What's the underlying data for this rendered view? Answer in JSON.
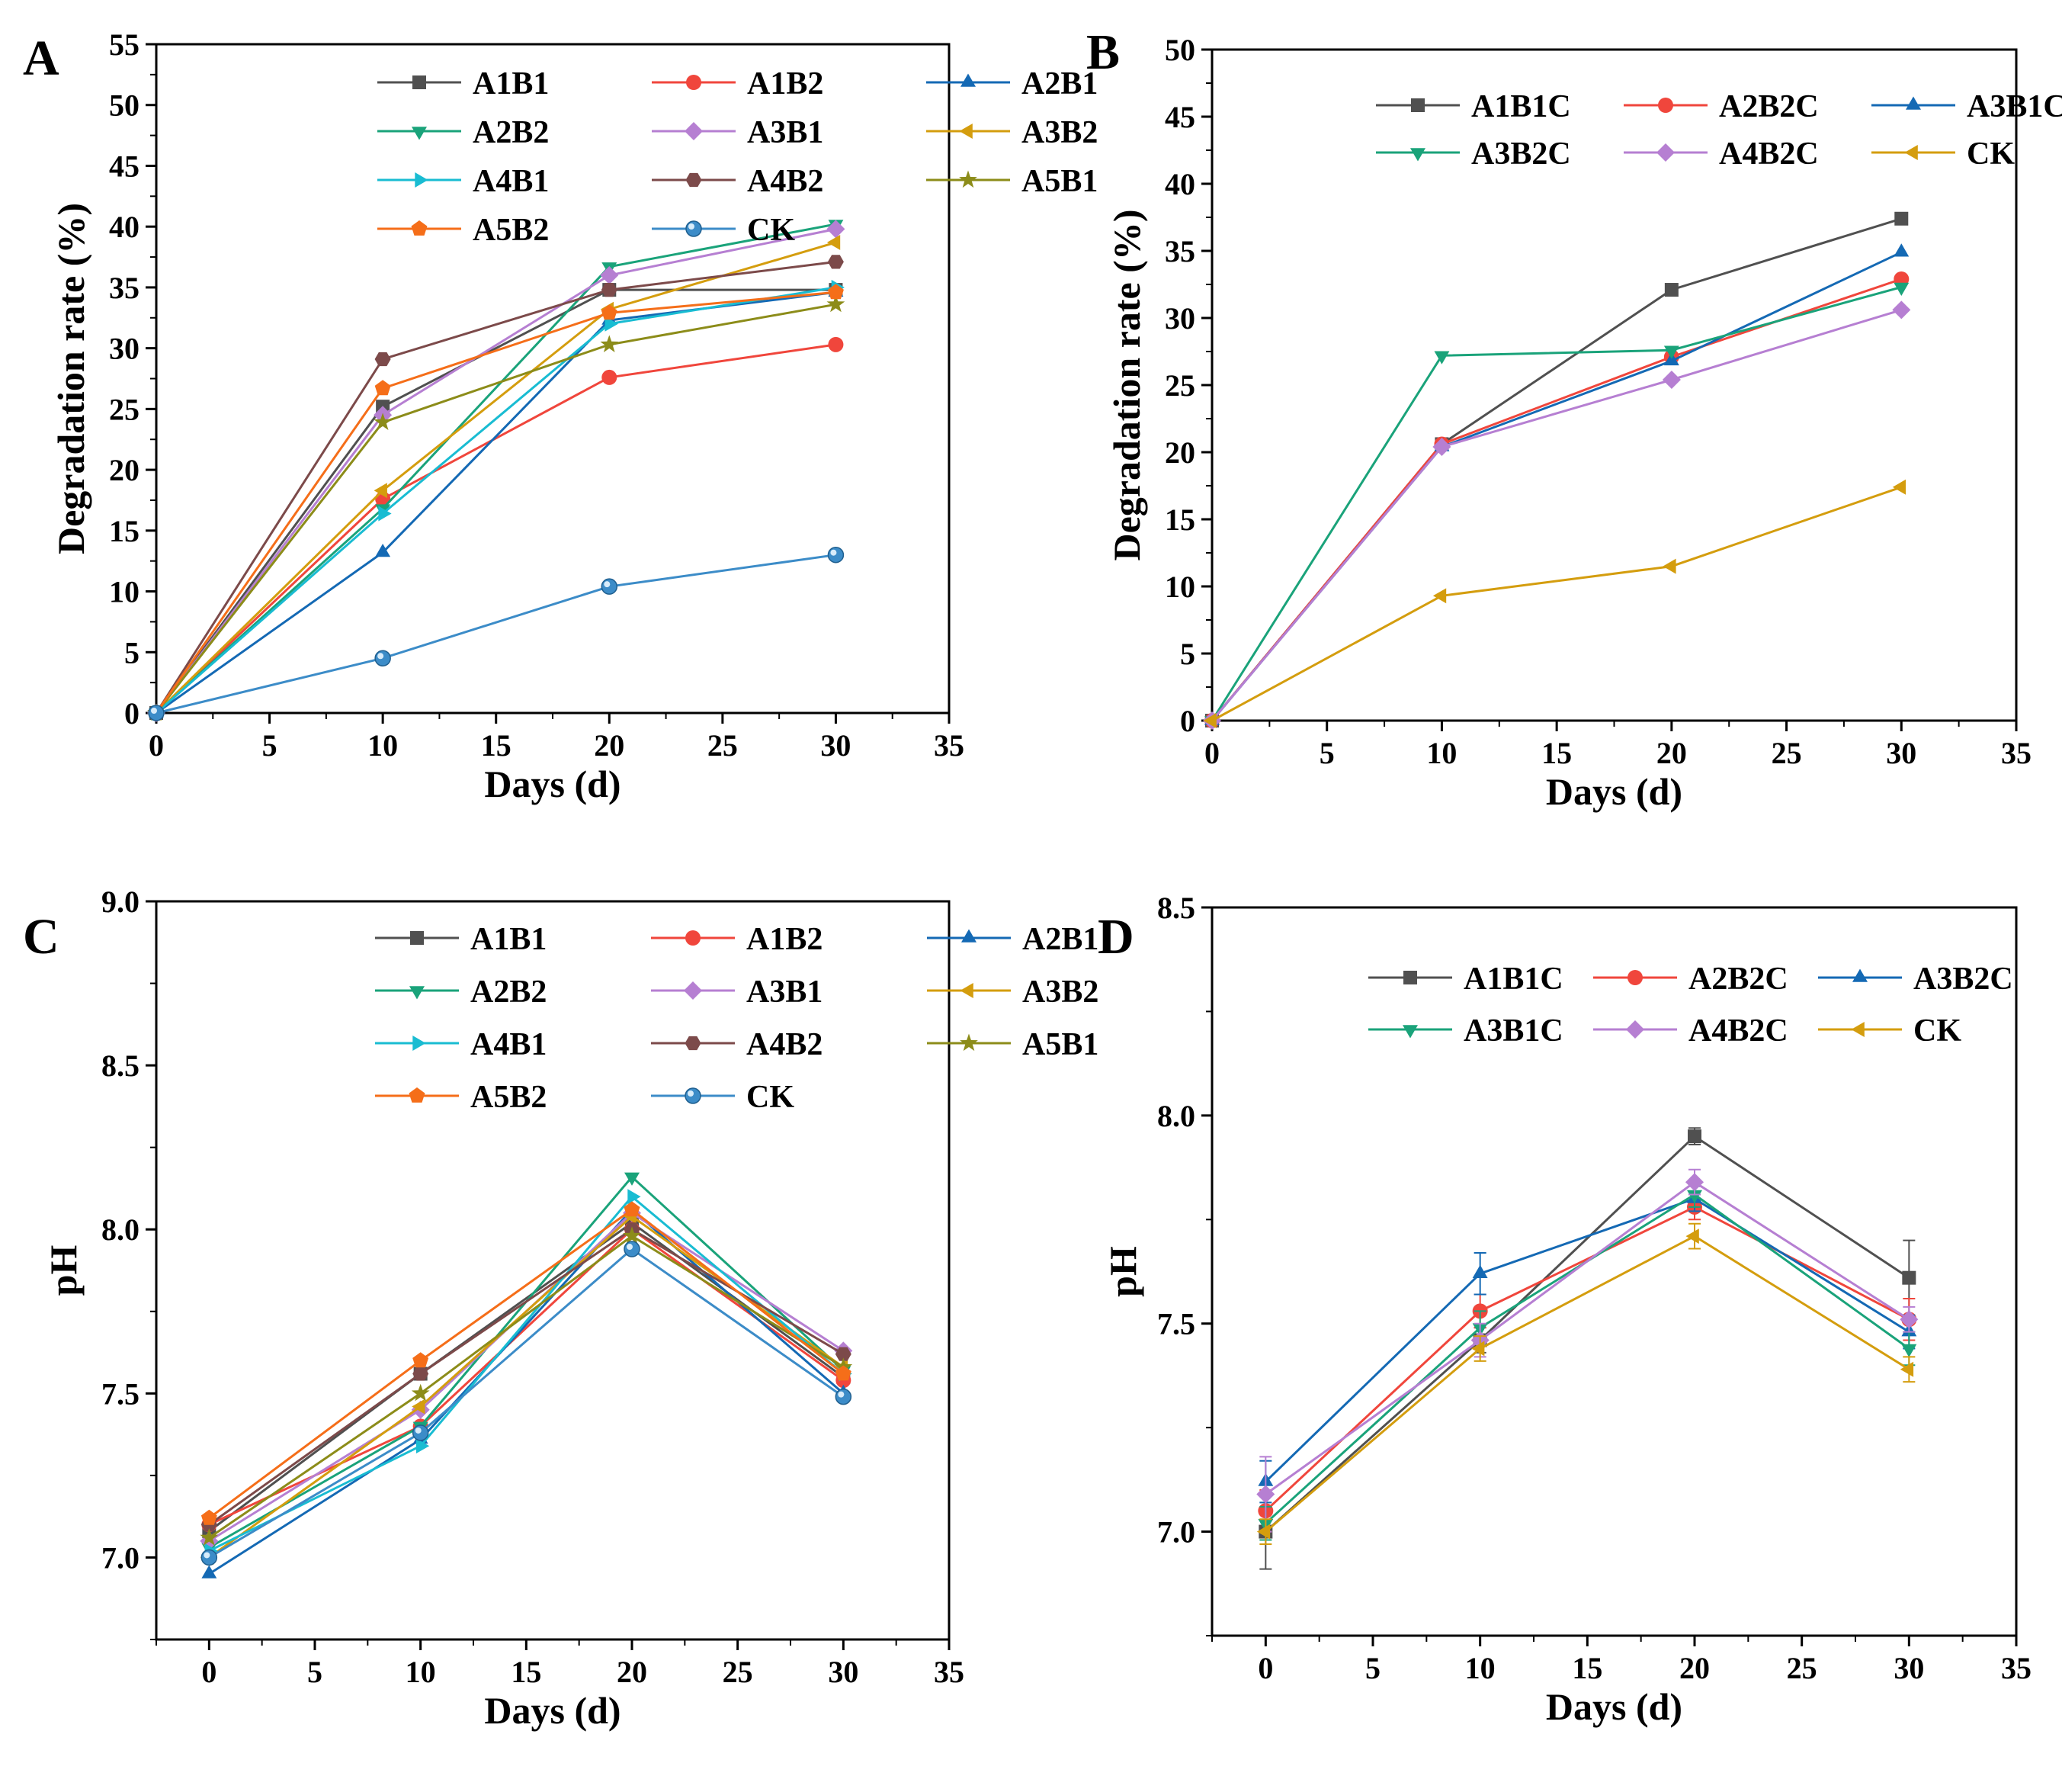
{
  "chart_data": [
    {
      "panel": "A",
      "type": "line",
      "xlabel": "Days (d)",
      "ylabel": "Degradation rate (%)",
      "xlim": [
        0,
        35
      ],
      "ylim": [
        0,
        55
      ],
      "xticks": [
        0,
        5,
        10,
        15,
        20,
        25,
        30,
        35
      ],
      "yticks": [
        0,
        5,
        10,
        15,
        20,
        25,
        30,
        35,
        40,
        45,
        50,
        55
      ],
      "tick_decimals": 0,
      "legend_columns": 3,
      "legend_position": "top-right",
      "x": [
        0,
        10,
        20,
        30
      ],
      "series": [
        {
          "name": "A1B1",
          "color": "#505050",
          "marker": "square",
          "values": [
            0,
            25.2,
            34.8,
            34.8
          ]
        },
        {
          "name": "A1B2",
          "color": "#f0463c",
          "marker": "circle",
          "values": [
            0,
            17.6,
            27.6,
            30.3
          ]
        },
        {
          "name": "A2B1",
          "color": "#1469b4",
          "marker": "triangle-up",
          "values": [
            0,
            13.2,
            32.3,
            34.6
          ]
        },
        {
          "name": "A2B2",
          "color": "#1aa37a",
          "marker": "triangle-down",
          "values": [
            0,
            16.8,
            36.7,
            40.2
          ]
        },
        {
          "name": "A3B1",
          "color": "#b67fd2",
          "marker": "diamond",
          "values": [
            0,
            24.5,
            36.0,
            39.8
          ]
        },
        {
          "name": "A3B2",
          "color": "#d49d0e",
          "marker": "triangle-left",
          "values": [
            0,
            18.3,
            33.2,
            38.7
          ]
        },
        {
          "name": "A4B1",
          "color": "#19bcd2",
          "marker": "triangle-right",
          "values": [
            0,
            16.4,
            32.0,
            35.0
          ]
        },
        {
          "name": "A4B2",
          "color": "#7c4a4a",
          "marker": "hexagon",
          "values": [
            0,
            29.1,
            34.8,
            37.1
          ]
        },
        {
          "name": "A5B1",
          "color": "#8c8c19",
          "marker": "star",
          "values": [
            0,
            23.9,
            30.3,
            33.6
          ]
        },
        {
          "name": "A5B2",
          "color": "#f56e19",
          "marker": "pentagon",
          "values": [
            0,
            26.7,
            32.9,
            34.6
          ]
        },
        {
          "name": "CK",
          "color": "#3c8cc8",
          "marker": "sphere",
          "values": [
            0,
            4.5,
            10.4,
            13.0
          ]
        }
      ]
    },
    {
      "panel": "B",
      "type": "line",
      "xlabel": "Days (d)",
      "ylabel": "Degradation rate (%)",
      "xlim": [
        0,
        35
      ],
      "ylim": [
        0,
        50
      ],
      "xticks": [
        0,
        5,
        10,
        15,
        20,
        25,
        30,
        35
      ],
      "yticks": [
        0,
        5,
        10,
        15,
        20,
        25,
        30,
        35,
        40,
        45,
        50
      ],
      "tick_decimals": 0,
      "legend_columns": 3,
      "legend_position": "top-right",
      "x": [
        0,
        10,
        20,
        30
      ],
      "series": [
        {
          "name": "A1B1C",
          "color": "#505050",
          "marker": "square",
          "values": [
            0,
            20.6,
            32.1,
            37.4
          ]
        },
        {
          "name": "A2B2C",
          "color": "#f0463c",
          "marker": "circle",
          "values": [
            0,
            20.6,
            27.1,
            32.9
          ]
        },
        {
          "name": "A3B1C",
          "color": "#1469b4",
          "marker": "triangle-up",
          "values": [
            0,
            20.4,
            26.8,
            34.9
          ]
        },
        {
          "name": "A3B2C",
          "color": "#1aa37a",
          "marker": "triangle-down",
          "values": [
            0,
            27.2,
            27.6,
            32.3
          ]
        },
        {
          "name": "A4B2C",
          "color": "#b67fd2",
          "marker": "diamond",
          "values": [
            0,
            20.4,
            25.4,
            30.6
          ]
        },
        {
          "name": "CK",
          "color": "#d49d0e",
          "marker": "triangle-left",
          "values": [
            0,
            9.3,
            11.5,
            17.4
          ]
        }
      ]
    },
    {
      "panel": "C",
      "type": "line",
      "xlabel": "Days (d)",
      "ylabel": "pH",
      "xlim": [
        -2.5,
        35
      ],
      "ylim": [
        6.75,
        9.0
      ],
      "xticks": [
        0,
        5,
        10,
        15,
        20,
        25,
        30,
        35
      ],
      "yticks": [
        7.0,
        7.5,
        8.0,
        8.5,
        9.0
      ],
      "tick_decimals": 1,
      "legend_columns": 3,
      "legend_position": "top-right",
      "x": [
        0,
        10,
        20,
        30
      ],
      "series": [
        {
          "name": "A1B1",
          "color": "#505050",
          "marker": "square",
          "values": [
            7.08,
            7.56,
            8.02,
            7.55
          ]
        },
        {
          "name": "A1B2",
          "color": "#f0463c",
          "marker": "circle",
          "values": [
            7.1,
            7.4,
            8.0,
            7.54
          ]
        },
        {
          "name": "A2B1",
          "color": "#1469b4",
          "marker": "triangle-up",
          "values": [
            6.95,
            7.36,
            8.06,
            7.5
          ]
        },
        {
          "name": "A2B2",
          "color": "#1aa37a",
          "marker": "triangle-down",
          "values": [
            7.03,
            7.4,
            8.16,
            7.57
          ]
        },
        {
          "name": "A3B1",
          "color": "#b67fd2",
          "marker": "diamond",
          "values": [
            7.05,
            7.45,
            8.05,
            7.63
          ]
        },
        {
          "name": "A3B2",
          "color": "#d49d0e",
          "marker": "triangle-left",
          "values": [
            7.0,
            7.46,
            8.04,
            7.58
          ]
        },
        {
          "name": "A4B1",
          "color": "#19bcd2",
          "marker": "triangle-right",
          "values": [
            7.02,
            7.34,
            8.1,
            7.56
          ]
        },
        {
          "name": "A4B2",
          "color": "#7c4a4a",
          "marker": "hexagon",
          "values": [
            7.1,
            7.56,
            8.0,
            7.62
          ]
        },
        {
          "name": "A5B1",
          "color": "#8c8c19",
          "marker": "star",
          "values": [
            7.06,
            7.5,
            7.98,
            7.58
          ]
        },
        {
          "name": "A5B2",
          "color": "#f56e19",
          "marker": "pentagon",
          "values": [
            7.12,
            7.6,
            8.06,
            7.56
          ]
        },
        {
          "name": "CK",
          "color": "#3c8cc8",
          "marker": "sphere",
          "values": [
            7.0,
            7.38,
            7.94,
            7.49
          ]
        }
      ]
    },
    {
      "panel": "D",
      "type": "line",
      "xlabel": "Days (d)",
      "ylabel": "pH",
      "xlim": [
        -2.5,
        35
      ],
      "ylim": [
        6.75,
        8.5
      ],
      "xticks": [
        0,
        5,
        10,
        15,
        20,
        25,
        30,
        35
      ],
      "yticks": [
        7.0,
        7.5,
        8.0,
        8.5
      ],
      "tick_decimals": 1,
      "legend_columns": 3,
      "legend_position": "top-right",
      "x": [
        0,
        10,
        20,
        30
      ],
      "series": [
        {
          "name": "A1B1C",
          "color": "#505050",
          "marker": "square",
          "values": [
            7.0,
            7.46,
            7.95,
            7.61
          ],
          "errors": [
            0.09,
            0.03,
            0.02,
            0.09
          ]
        },
        {
          "name": "A2B2C",
          "color": "#f0463c",
          "marker": "circle",
          "values": [
            7.05,
            7.53,
            7.78,
            7.51
          ],
          "errors": [
            0.05,
            0.04,
            0.03,
            0.05
          ]
        },
        {
          "name": "A3B2C",
          "color": "#1469b4",
          "marker": "triangle-up",
          "values": [
            7.12,
            7.62,
            7.8,
            7.48
          ],
          "errors": [
            0.05,
            0.05,
            0.03,
            0.04
          ]
        },
        {
          "name": "A3B1C",
          "color": "#1aa37a",
          "marker": "triangle-down",
          "values": [
            7.02,
            7.49,
            7.81,
            7.44
          ],
          "errors": [
            0.04,
            0.04,
            0.03,
            0.04
          ]
        },
        {
          "name": "A4B2C",
          "color": "#b67fd2",
          "marker": "diamond",
          "values": [
            7.09,
            7.46,
            7.84,
            7.51
          ],
          "errors": [
            0.09,
            0.04,
            0.03,
            0.03
          ]
        },
        {
          "name": "CK",
          "color": "#d49d0e",
          "marker": "triangle-left",
          "values": [
            7.0,
            7.44,
            7.71,
            7.39
          ],
          "errors": [
            0.03,
            0.03,
            0.03,
            0.03
          ]
        }
      ]
    }
  ]
}
